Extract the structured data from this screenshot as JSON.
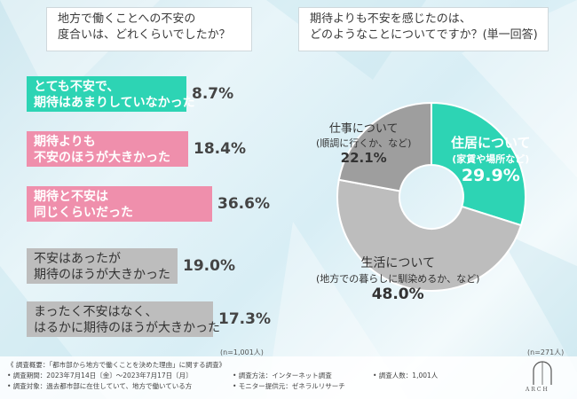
{
  "colors": {
    "teal": "#2dd4b4",
    "pink": "#ef8fac",
    "gray": "#bdbdbd",
    "dark_gray": "#9e9e9e"
  },
  "left_panel": {
    "title_line1": "地方で働くことへの不安の",
    "title_line2": "度合いは、どれくらいでしたか？",
    "sample_note": "(n=1,001人)"
  },
  "right_panel": {
    "title_line1": "期待よりも不安を感じたのは、",
    "title_line2": "どのようなことについてですか？(単一回答)",
    "sample_note": "(n=271人)"
  },
  "chart_data": [
    {
      "type": "bar",
      "orientation": "horizontal",
      "categories": [
        [
          "とても不安で、",
          "期待はあまりしていなかった"
        ],
        [
          "期待よりも",
          "不安のほうが大きかった"
        ],
        [
          "期待と不安は",
          "同じくらいだった"
        ],
        [
          "不安はあったが",
          "期待のほうが大きかった"
        ],
        [
          "まったく不安はなく、",
          "はるかに期待のほうが大きかった"
        ]
      ],
      "values": [
        8.7,
        18.4,
        36.6,
        19.0,
        17.3
      ],
      "value_labels": [
        "8.7%",
        "18.4%",
        "36.6%",
        "19.0%",
        "17.3%"
      ],
      "bar_colors": [
        "#2dd4b4",
        "#ef8fac",
        "#ef8fac",
        "#bdbdbd",
        "#bdbdbd"
      ],
      "xlim": [
        0,
        100
      ]
    },
    {
      "type": "pie",
      "style": "donut",
      "slices": [
        {
          "label": "住居について",
          "sub": "(家賃や場所など)",
          "value": 29.9,
          "value_label": "29.9%",
          "color": "#2dd4b4"
        },
        {
          "label": "生活について",
          "sub": "(地方での暮らしに馴染めるか、など)",
          "value": 48.0,
          "value_label": "48.0%",
          "color": "#bdbdbd"
        },
        {
          "label": "仕事について",
          "sub": "(順調に行くか、など)",
          "value": 22.1,
          "value_label": "22.1%",
          "color": "#9e9e9e"
        }
      ]
    }
  ],
  "footer": {
    "line1": "《 調査概要：「都市部から地方で働くことを決めた理由」に関する調査》",
    "line2a": "• 調査期間：2023年7月14日〔金〕〜2023年7月17日〔月〕",
    "line2b": "• 調査方法：インターネット調査",
    "line2c": "• 調査人数：1,001人",
    "line3a": "• 調査対象：過去都市部に在住していて、地方で働いている方",
    "line3b": "• モニター提供元：ゼネラルリサーチ"
  },
  "brand": {
    "logo_text": "ARCH"
  }
}
